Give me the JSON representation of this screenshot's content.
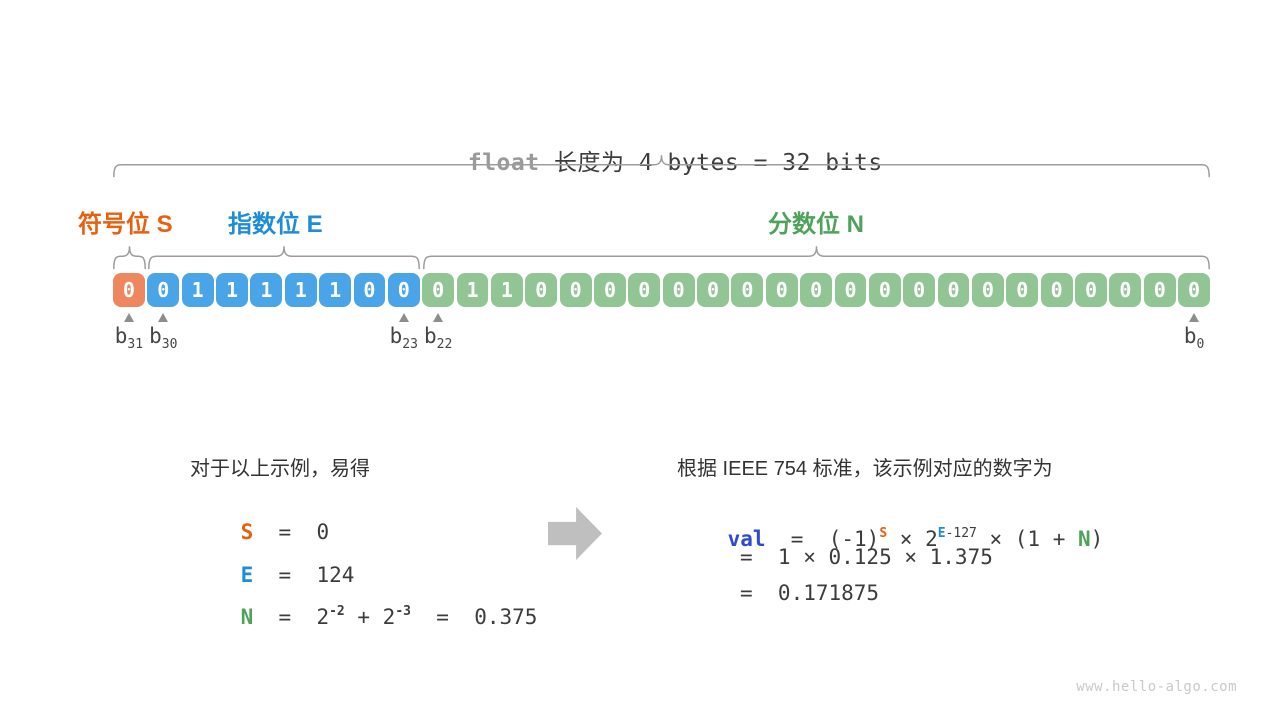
{
  "title": {
    "code": "float",
    "rest": " 长度为 4 bytes = 32 bits"
  },
  "fields": {
    "sign": {
      "label": "符号位 S",
      "color": "#E8600D"
    },
    "exponent": {
      "label": "指数位 E",
      "color": "#1F8DD6"
    },
    "fraction": {
      "label": "分数位 N",
      "color": "#4EA25A"
    }
  },
  "bits": {
    "sign": [
      "0"
    ],
    "exponent": [
      "0",
      "1",
      "1",
      "1",
      "1",
      "1",
      "0",
      "0"
    ],
    "fraction": [
      "0",
      "1",
      "1",
      "0",
      "0",
      "0",
      "0",
      "0",
      "0",
      "0",
      "0",
      "0",
      "0",
      "0",
      "0",
      "0",
      "0",
      "0",
      "0",
      "0",
      "0",
      "0",
      "0"
    ]
  },
  "bit_markers": [
    {
      "label": "b",
      "sub": "31",
      "box_index": 0
    },
    {
      "label": "b",
      "sub": "30",
      "box_index": 1
    },
    {
      "label": "b",
      "sub": "23",
      "box_index": 8
    },
    {
      "label": "b",
      "sub": "22",
      "box_index": 9
    },
    {
      "label": "b",
      "sub": "0",
      "box_index": 31
    }
  ],
  "left_panel": {
    "intro": "对于以上示例，易得",
    "s_line": {
      "letter": "S",
      "rest": "  =  0"
    },
    "e_line": {
      "letter": "E",
      "rest": "  =  124"
    },
    "n_line": {
      "letter": "N",
      "rest1": "  =  2",
      "sup1": "-2",
      "mid": " + 2",
      "sup2": "-3",
      "rest2": "  =  0.375"
    }
  },
  "right_panel": {
    "intro": "根据 IEEE 754 标准，该示例对应的数字为",
    "val_line": {
      "val": "val",
      "pre": "  =  (-1)",
      "sup_s": "S",
      "mid1": " × 2",
      "sup_e": "E",
      "sup_e_rest": "-127",
      "mid2": " × (1 + ",
      "n": "N",
      "close": ")"
    },
    "line2": "=  1 × 0.125 × 1.375",
    "line3": "=  0.171875"
  },
  "watermark": "www.hello-algo.com",
  "colors": {
    "sign_box": "#EE8760",
    "exponent_box": "#4AA4E8",
    "fraction_box": "#92C594",
    "sign_text": "#E8600D",
    "exponent_text": "#1F8DD6",
    "fraction_text": "#4EA25A",
    "val_text": "#2F49D1",
    "dark_text": "#3C3C3C",
    "code_gray": "#9A9A9A"
  }
}
